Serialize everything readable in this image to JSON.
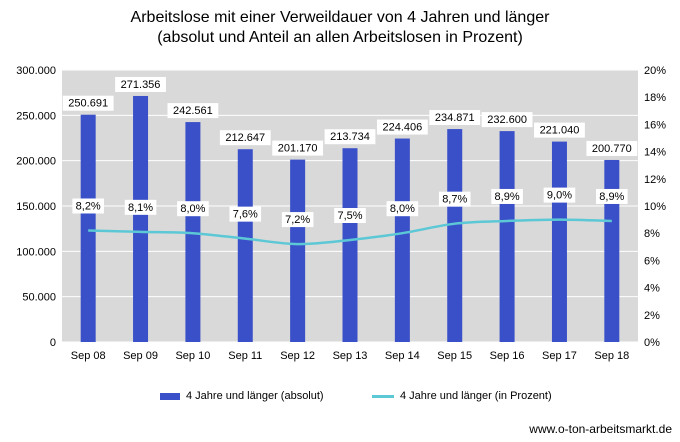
{
  "chart_data": {
    "type": "bar",
    "title_line1": "Arbeitslose mit einer Verweildauer von 4 Jahren und länger",
    "title_line2": "(absolut und Anteil an allen Arbeitslosen in Prozent)",
    "categories": [
      "Sep 08",
      "Sep 09",
      "Sep 10",
      "Sep 11",
      "Sep 12",
      "Sep 13",
      "Sep 14",
      "Sep 15",
      "Sep 16",
      "Sep 17",
      "Sep 18"
    ],
    "series": [
      {
        "name": "4 Jahre und länger (absolut)",
        "type": "bar",
        "axis": "left",
        "values": [
          250691,
          271356,
          242561,
          212647,
          201170,
          213734,
          224406,
          234871,
          232600,
          221040,
          200770
        ],
        "labels": [
          "250.691",
          "271.356",
          "242.561",
          "212.647",
          "201.170",
          "213.734",
          "224.406",
          "234.871",
          "232.600",
          "221.040",
          "200.770"
        ],
        "color": "#3a50c8"
      },
      {
        "name": "4 Jahre und länger (in Prozent)",
        "type": "line",
        "axis": "right",
        "values": [
          8.2,
          8.1,
          8.0,
          7.6,
          7.2,
          7.5,
          8.0,
          8.7,
          8.9,
          9.0,
          8.9
        ],
        "labels": [
          "8,2%",
          "8,1%",
          "8,0%",
          "7,6%",
          "7,2%",
          "7,5%",
          "8,0%",
          "8,7%",
          "8,9%",
          "9,0%",
          "8,9%"
        ],
        "color": "#5cc8d6"
      }
    ],
    "ylim_left": [
      0,
      300000
    ],
    "yticks_left": [
      "0",
      "50.000",
      "100.000",
      "150.000",
      "200.000",
      "250.000",
      "300.000"
    ],
    "ylim_right": [
      0,
      20
    ],
    "yticks_right": [
      "0%",
      "2%",
      "4%",
      "6%",
      "8%",
      "10%",
      "12%",
      "14%",
      "16%",
      "18%",
      "20%"
    ],
    "grid": true,
    "legend_position": "bottom",
    "plot_background": "#d9d9d9"
  },
  "footer": "www.o-ton-arbeitsmarkt.de"
}
